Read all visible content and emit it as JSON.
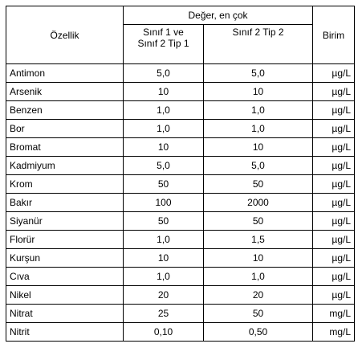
{
  "header": {
    "property": "Özellik",
    "value_group": "Değer, en çok",
    "col1": [
      "Sınıf 1 ve",
      "Sınıf 2 Tip 1"
    ],
    "col2": "Sınıf 2 Tip 2",
    "unit": "Birim"
  },
  "table": {
    "rows": [
      [
        "Antimon",
        "5,0",
        "5,0",
        "µg/L"
      ],
      [
        "Arsenik",
        "10",
        "10",
        "µg/L"
      ],
      [
        "Benzen",
        "1,0",
        "1,0",
        "µg/L"
      ],
      [
        "Bor",
        "1,0",
        "1,0",
        "µg/L"
      ],
      [
        "Bromat",
        "10",
        "10",
        "µg/L"
      ],
      [
        "Kadmiyum",
        "5,0",
        "5,0",
        "µg/L"
      ],
      [
        "Krom",
        "50",
        "50",
        "µg/L"
      ],
      [
        "Bakır",
        "100",
        "2000",
        "µg/L"
      ],
      [
        "Siyanür",
        "50",
        "50",
        "µg/L"
      ],
      [
        "Florür",
        "1,0",
        "1,5",
        "µg/L"
      ],
      [
        "Kurşun",
        "10",
        "10",
        "µg/L"
      ],
      [
        "Cıva",
        "1,0",
        "1,0",
        "µg/L"
      ],
      [
        "Nikel",
        "20",
        "20",
        "µg/L"
      ],
      [
        "Nitrat",
        "25",
        "50",
        "mg/L"
      ],
      [
        "Nitrit",
        "0,10",
        "0,50",
        "mg/L"
      ]
    ]
  }
}
